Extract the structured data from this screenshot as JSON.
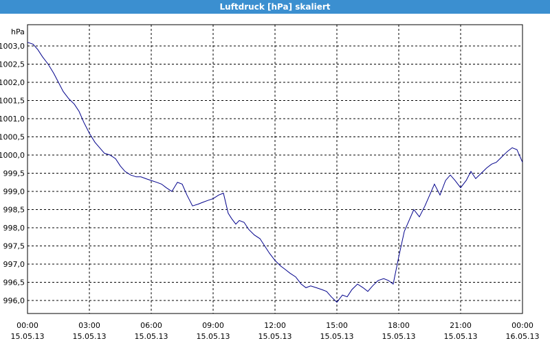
{
  "window": {
    "title": "Luftdruck [hPa] skaliert"
  },
  "chart_data": {
    "type": "line",
    "title": "Luftdruck [hPa] skaliert",
    "ylabel": "hPa",
    "xlabel": "",
    "ylim": [
      995.6,
      1003.3
    ],
    "yticks": [
      "1003,0",
      "1002,5",
      "1002,0",
      "1001,5",
      "1001,0",
      "1000,5",
      "1000,0",
      "999,5",
      "999,0",
      "998,5",
      "998,0",
      "997,5",
      "997,0",
      "996,5",
      "996,0"
    ],
    "ytick_values": [
      1003.0,
      1002.5,
      1002.0,
      1001.5,
      1001.0,
      1000.5,
      1000.0,
      999.5,
      999.0,
      998.5,
      998.0,
      997.5,
      997.0,
      996.5,
      996.0
    ],
    "xlim": [
      0,
      24
    ],
    "xticks": [
      {
        "time": "00:00",
        "date": "15.05.13"
      },
      {
        "time": "03:00",
        "date": "15.05.13"
      },
      {
        "time": "06:00",
        "date": "15.05.13"
      },
      {
        "time": "09:00",
        "date": "15.05.13"
      },
      {
        "time": "12:00",
        "date": "15.05.13"
      },
      {
        "time": "15:00",
        "date": "15.05.13"
      },
      {
        "time": "18:00",
        "date": "15.05.13"
      },
      {
        "time": "21:00",
        "date": "15.05.13"
      },
      {
        "time": "00:00",
        "date": "16.05.13"
      }
    ],
    "grid": true,
    "line_color": "#00008b",
    "series": [
      {
        "x": [
          0.0,
          0.27,
          0.5,
          0.73,
          1.0,
          1.27,
          1.5,
          1.73,
          2.0,
          2.27,
          2.5,
          2.73,
          3.0,
          3.27,
          3.5,
          3.73,
          4.0,
          4.27,
          4.5,
          4.73,
          5.0,
          5.27,
          5.5,
          5.73,
          6.0,
          6.27,
          6.5,
          6.73,
          7.0,
          7.27,
          7.5,
          7.73,
          8.0,
          8.27,
          8.5,
          8.73,
          9.0,
          9.27,
          9.5,
          9.73,
          9.9,
          10.1,
          10.27,
          10.5,
          10.73,
          11.0,
          11.27,
          11.5,
          11.73,
          12.0,
          12.27,
          12.5,
          12.73,
          13.0,
          13.27,
          13.5,
          13.73,
          14.0,
          14.27,
          14.5,
          14.73,
          15.0,
          15.27,
          15.5,
          15.73,
          16.0,
          16.27,
          16.5,
          16.73,
          17.0,
          17.27,
          17.5,
          17.73,
          18.0,
          18.27,
          18.5,
          18.73,
          19.0,
          19.27,
          19.5,
          19.73,
          20.0,
          20.27,
          20.5,
          20.73,
          21.0,
          21.27,
          21.5,
          21.73,
          22.0,
          22.27,
          22.5,
          22.73,
          23.0,
          23.27,
          23.5,
          23.73,
          24.0
        ],
        "y": [
          1003.1,
          1003.05,
          1002.9,
          1002.7,
          1002.5,
          1002.25,
          1002.0,
          1001.75,
          1001.55,
          1001.4,
          1001.2,
          1000.9,
          1000.6,
          1000.35,
          1000.2,
          1000.05,
          1000.0,
          999.9,
          999.7,
          999.55,
          999.45,
          999.4,
          999.4,
          999.35,
          999.3,
          999.25,
          999.2,
          999.1,
          999.0,
          999.25,
          999.2,
          998.9,
          998.6,
          998.65,
          998.7,
          998.75,
          998.8,
          998.9,
          998.95,
          998.4,
          998.25,
          998.1,
          998.2,
          998.15,
          997.95,
          997.8,
          997.7,
          997.5,
          997.3,
          997.1,
          996.95,
          996.85,
          996.75,
          996.65,
          996.45,
          996.35,
          996.4,
          996.35,
          996.3,
          996.25,
          996.1,
          995.95,
          996.15,
          996.1,
          996.3,
          996.45,
          996.35,
          996.25,
          996.4,
          996.55,
          996.6,
          996.55,
          996.45,
          997.2,
          997.9,
          998.2,
          998.5,
          998.3,
          998.6,
          998.9,
          999.2,
          998.9,
          999.3,
          999.45,
          999.3,
          999.1,
          999.3,
          999.55,
          999.35,
          999.5,
          999.65,
          999.75,
          999.8,
          999.95,
          1000.1,
          1000.2,
          1000.15,
          999.8
        ]
      }
    ]
  }
}
